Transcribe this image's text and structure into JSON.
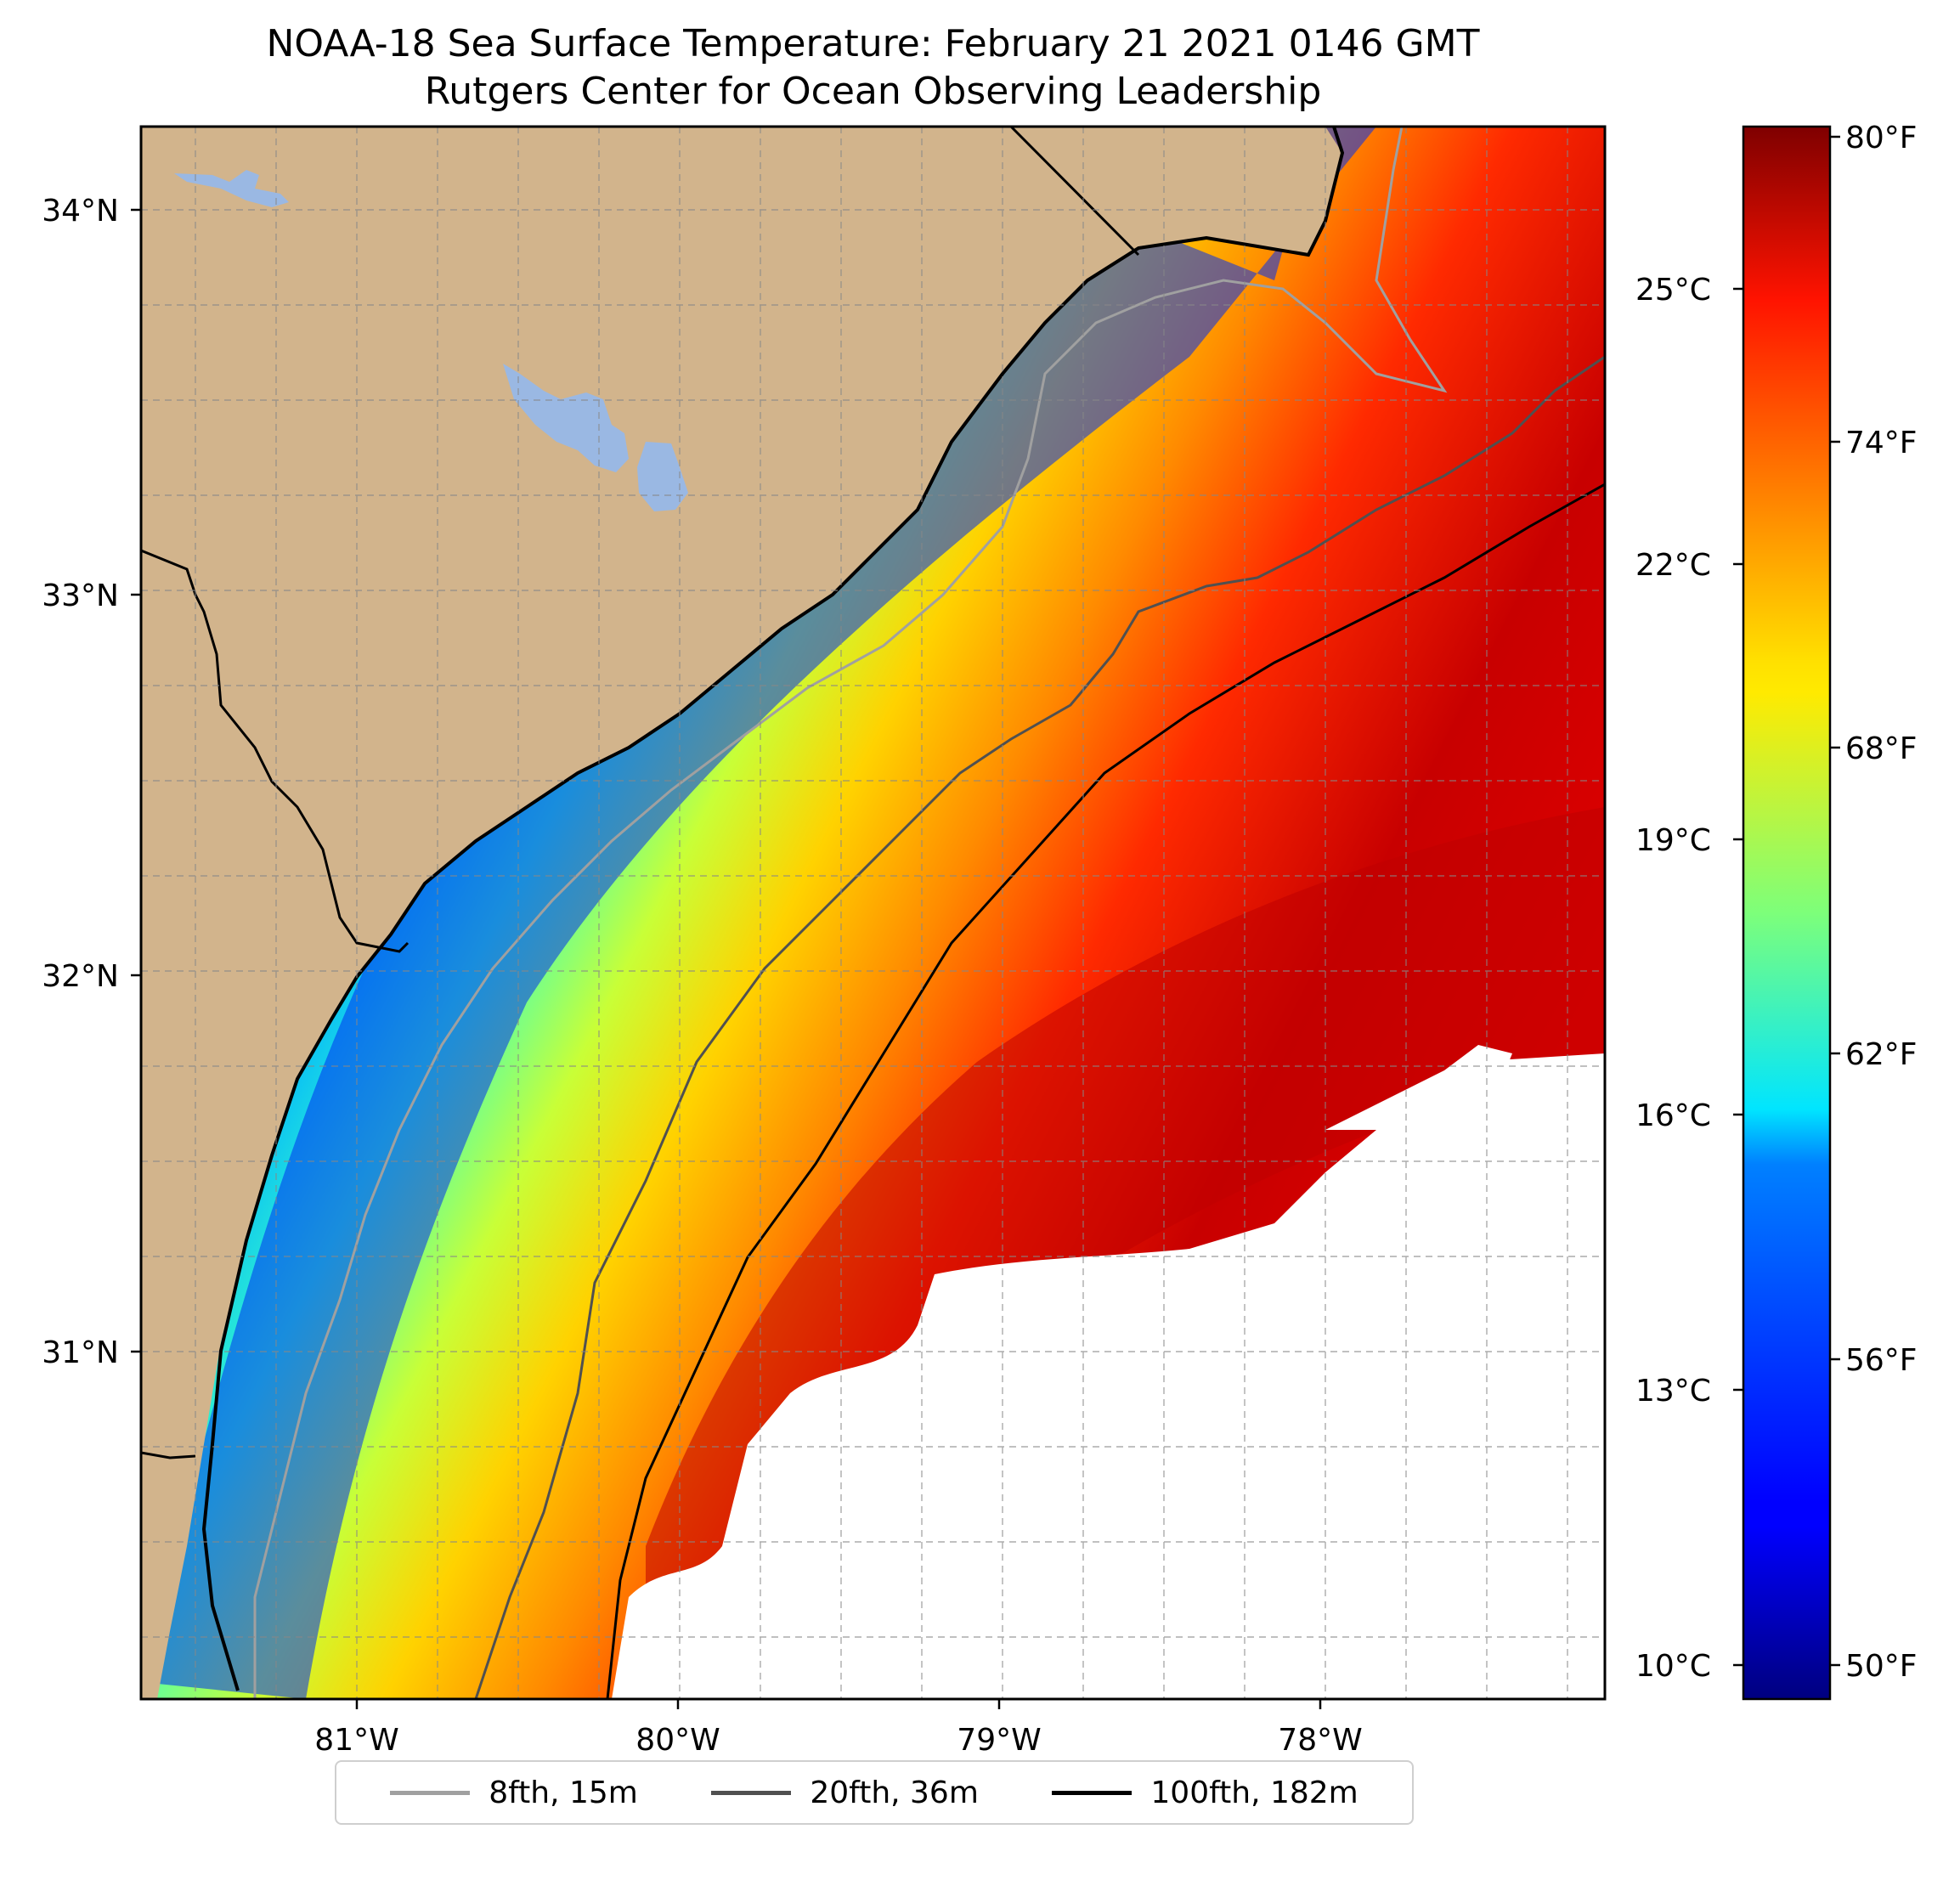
{
  "title_line1": "NOAA-18 Sea Surface Temperature: February 21 2021 0146 GMT",
  "title_line2": "Rutgers Center for Ocean Observing Leadership",
  "map": {
    "lon_ticks": [
      "81°W",
      "80°W",
      "79°W",
      "78°W"
    ],
    "lat_ticks": [
      "34°N",
      "33°N",
      "32°N",
      "31°N"
    ],
    "colors": {
      "land": "#d2b48c",
      "water_body": "#9ab8e3",
      "no_data": "#ffffff"
    }
  },
  "colorbar": {
    "celsius_ticks": [
      "25°C",
      "22°C",
      "19°C",
      "16°C",
      "13°C",
      "10°C"
    ],
    "fahrenheit_ticks": [
      "80°F",
      "74°F",
      "68°F",
      "62°F",
      "56°F",
      "50°F"
    ],
    "colormap": "jet",
    "range_f": [
      49.5,
      80.5
    ]
  },
  "legend": [
    {
      "label": "8fth, 15m",
      "color": "#a0a0a0"
    },
    {
      "label": "20fth, 36m",
      "color": "#505050"
    },
    {
      "label": "100fth, 182m",
      "color": "#000000"
    }
  ]
}
